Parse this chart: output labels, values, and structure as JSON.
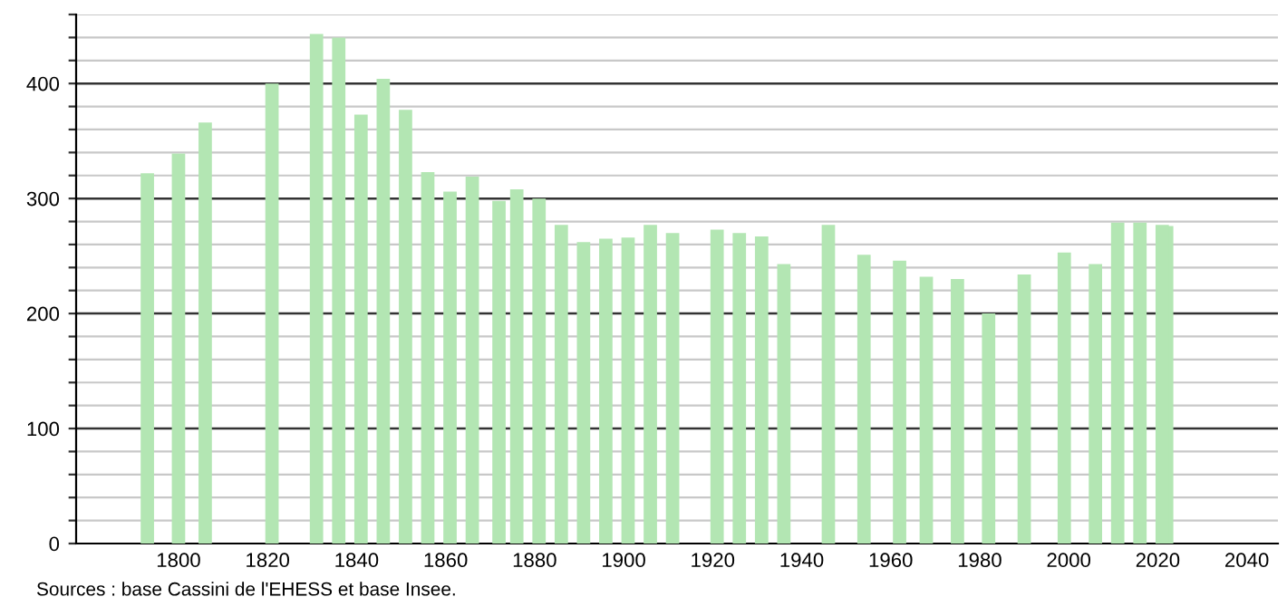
{
  "chart_data": {
    "type": "bar",
    "x": [
      1793,
      1800,
      1806,
      1821,
      1831,
      1836,
      1841,
      1846,
      1851,
      1856,
      1861,
      1866,
      1872,
      1876,
      1881,
      1886,
      1891,
      1896,
      1901,
      1906,
      1911,
      1921,
      1926,
      1931,
      1936,
      1946,
      1954,
      1962,
      1968,
      1975,
      1982,
      1990,
      1999,
      2006,
      2011,
      2016,
      2021,
      2022
    ],
    "values": [
      322,
      339,
      366,
      400,
      443,
      440,
      373,
      404,
      377,
      323,
      306,
      319,
      298,
      308,
      300,
      277,
      262,
      265,
      266,
      277,
      270,
      273,
      270,
      267,
      243,
      277,
      251,
      246,
      232,
      230,
      200,
      234,
      253,
      243,
      279,
      279,
      277,
      276
    ],
    "color": "#b3e6b3",
    "xlim": [
      1777,
      2047
    ],
    "xticks": [
      1800,
      1820,
      1840,
      1860,
      1880,
      1900,
      1920,
      1940,
      1960,
      1980,
      2000,
      2020,
      2040
    ],
    "ylim": [
      0,
      460
    ],
    "yticks": [
      0,
      {
        "value": 20,
        "label": null
      },
      {
        "value": 40,
        "label": null
      },
      {
        "value": 60,
        "label": null
      },
      {
        "value": 80,
        "label": null
      },
      100,
      {
        "value": 120,
        "label": null
      },
      {
        "value": 140,
        "label": null
      },
      {
        "value": 160,
        "label": null
      },
      {
        "value": 180,
        "label": null
      },
      200,
      {
        "value": 220,
        "label": null
      },
      {
        "value": 240,
        "label": null
      },
      {
        "value": 260,
        "label": null
      },
      {
        "value": 280,
        "label": null
      },
      300,
      {
        "value": 320,
        "label": null
      },
      {
        "value": 340,
        "label": null
      },
      {
        "value": 360,
        "label": null
      },
      {
        "value": 380,
        "label": null
      },
      400,
      {
        "value": 420,
        "label": null
      },
      {
        "value": 440,
        "label": null
      },
      {
        "value": 460,
        "label": null
      }
    ],
    "grid": "y",
    "annotations": [
      "Sources : base Cassini de l'EHESS et base Insee."
    ]
  }
}
